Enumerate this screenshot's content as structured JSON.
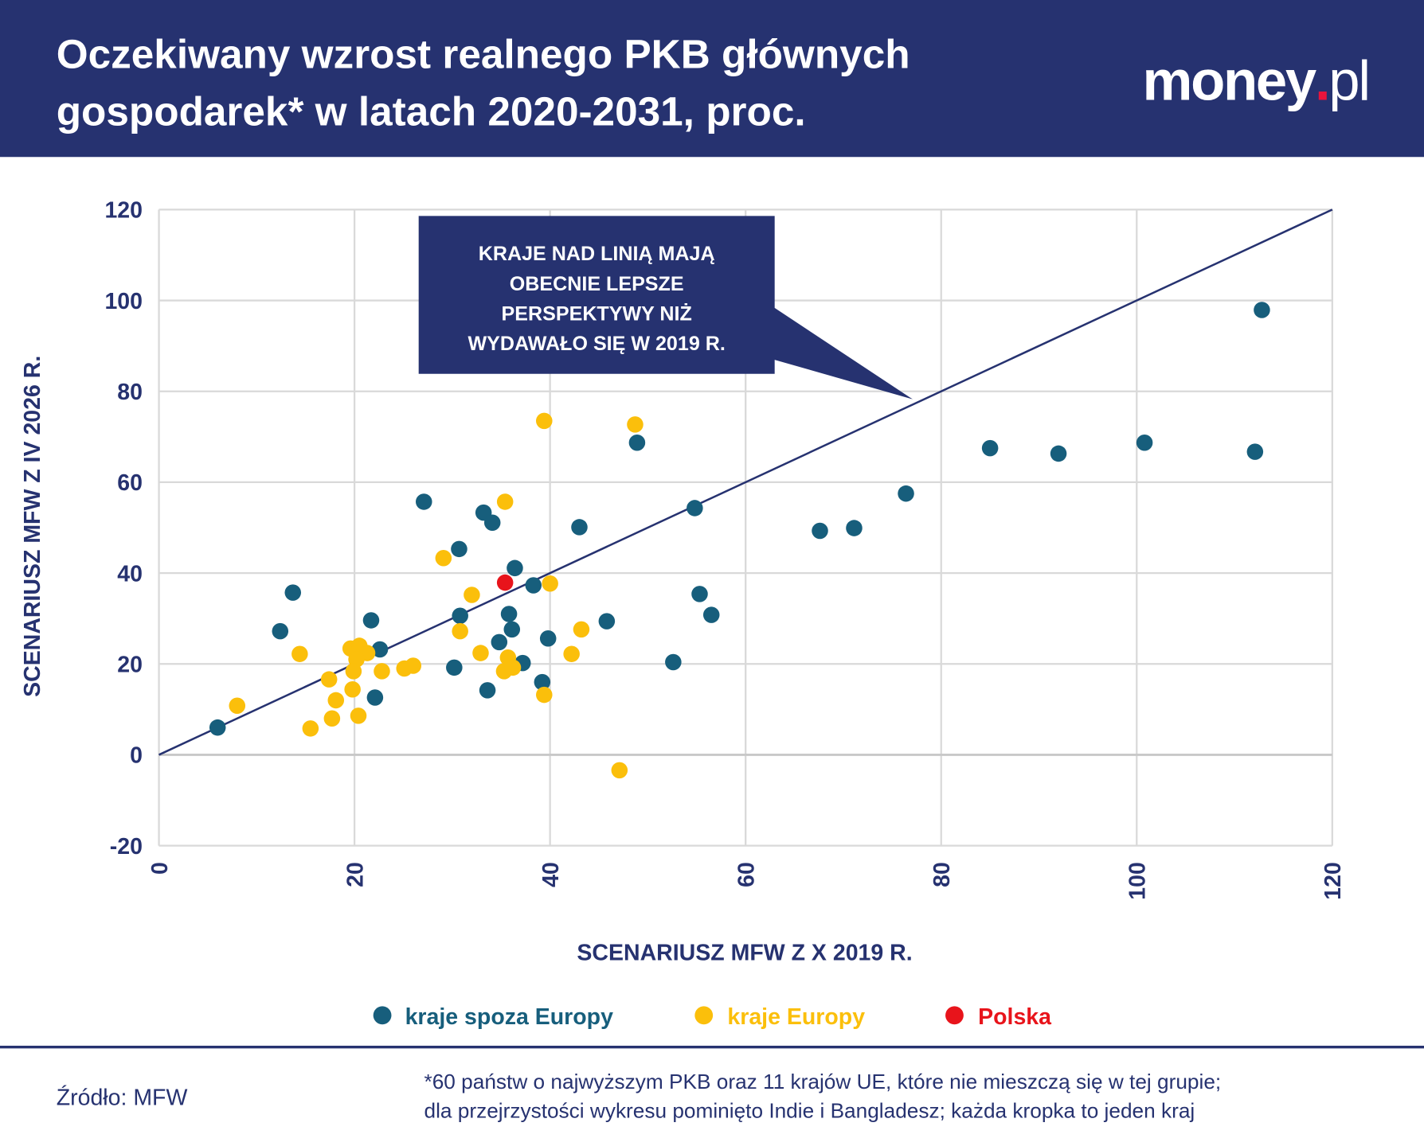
{
  "header": {
    "title_line1": "Oczekiwany wzrost realnego PKB głównych",
    "title_line2": "gospodarek* w latach 2020-2031, proc.",
    "logo_main": "money",
    "logo_dot": ".",
    "logo_suffix": "pl"
  },
  "colors": {
    "navy": "#263270",
    "non_europe": "#175e7c",
    "europe": "#fbbf0b",
    "poland": "#e8141b",
    "grid": "#d9d9d9"
  },
  "callout": {
    "lines": [
      "KRAJE NAD LINIĄ MAJĄ",
      "OBECNIE LEPSZE",
      "PERSPEKTYWY NIŻ",
      "WYDAWAŁO SIĘ W 2019 R."
    ]
  },
  "chart_data": {
    "type": "scatter",
    "xlabel": "SCENARIUSZ MFW Z X 2019 R.",
    "ylabel": "SCENARIUSZ MFW Z IV 2026 R.",
    "xlim": [
      0,
      120
    ],
    "ylim": [
      -20,
      120
    ],
    "x_ticks": [
      "0",
      "20",
      "40",
      "60",
      "80",
      "100",
      "120"
    ],
    "y_ticks": [
      "120",
      "100",
      "80",
      "60",
      "40",
      "20",
      "0",
      "-20"
    ],
    "grid": true,
    "reference_line": {
      "from": [
        0,
        0
      ],
      "to": [
        120,
        120
      ]
    },
    "legend_position": "bottom",
    "series": [
      {
        "name": "kraje spoza Europy",
        "color": "#175e7c",
        "points": [
          [
            6.0,
            6.0
          ],
          [
            12.4,
            27.2
          ],
          [
            13.7,
            35.7
          ],
          [
            21.7,
            29.6
          ],
          [
            22.6,
            23.2
          ],
          [
            22.1,
            12.6
          ],
          [
            27.1,
            55.7
          ],
          [
            30.7,
            45.3
          ],
          [
            30.8,
            30.6
          ],
          [
            30.2,
            19.2
          ],
          [
            33.2,
            53.3
          ],
          [
            34.1,
            51.1
          ],
          [
            36.4,
            41.1
          ],
          [
            38.3,
            37.3
          ],
          [
            35.8,
            31.0
          ],
          [
            36.1,
            27.6
          ],
          [
            34.8,
            24.8
          ],
          [
            37.2,
            20.2
          ],
          [
            33.6,
            14.2
          ],
          [
            39.2,
            16.0
          ],
          [
            39.8,
            25.6
          ],
          [
            43.0,
            50.1
          ],
          [
            45.8,
            29.4
          ],
          [
            48.9,
            68.7
          ],
          [
            52.6,
            20.4
          ],
          [
            54.8,
            54.3
          ],
          [
            55.3,
            35.4
          ],
          [
            56.5,
            30.8
          ],
          [
            67.6,
            49.3
          ],
          [
            71.1,
            49.9
          ],
          [
            76.4,
            57.5
          ],
          [
            85.0,
            67.5
          ],
          [
            92.0,
            66.3
          ],
          [
            100.8,
            68.7
          ],
          [
            112.1,
            66.7
          ],
          [
            112.8,
            97.9
          ]
        ]
      },
      {
        "name": "kraje Europy",
        "color": "#fbbf0b",
        "points": [
          [
            8.0,
            10.8
          ],
          [
            15.5,
            5.8
          ],
          [
            14.4,
            22.2
          ],
          [
            17.4,
            16.6
          ],
          [
            18.1,
            12.0
          ],
          [
            17.7,
            8.0
          ],
          [
            19.6,
            23.4
          ],
          [
            20.5,
            24.0
          ],
          [
            21.3,
            22.4
          ],
          [
            20.2,
            21.0
          ],
          [
            19.9,
            18.4
          ],
          [
            19.8,
            14.4
          ],
          [
            20.4,
            8.6
          ],
          [
            22.8,
            18.4
          ],
          [
            25.1,
            19.0
          ],
          [
            26.0,
            19.6
          ],
          [
            29.1,
            43.3
          ],
          [
            30.8,
            27.2
          ],
          [
            32.0,
            35.2
          ],
          [
            32.9,
            22.4
          ],
          [
            35.4,
            55.7
          ],
          [
            35.7,
            21.4
          ],
          [
            35.3,
            18.4
          ],
          [
            36.2,
            19.2
          ],
          [
            39.4,
            73.5
          ],
          [
            39.4,
            13.2
          ],
          [
            40.0,
            37.7
          ],
          [
            42.2,
            22.2
          ],
          [
            43.2,
            27.6
          ],
          [
            47.1,
            -3.4
          ],
          [
            48.7,
            72.7
          ]
        ]
      },
      {
        "name": "Polska",
        "color": "#e8141b",
        "points": [
          [
            35.4,
            37.9
          ]
        ]
      }
    ]
  },
  "footer": {
    "source": "Źródło: MFW",
    "note_line1": "*60 państw o najwyższym PKB oraz 11 krajów UE, które nie mieszczą się w tej grupie;",
    "note_line2": "dla przejrzystości wykresu pominięto Indie i Bangladesz; każda kropka to jeden kraj"
  }
}
